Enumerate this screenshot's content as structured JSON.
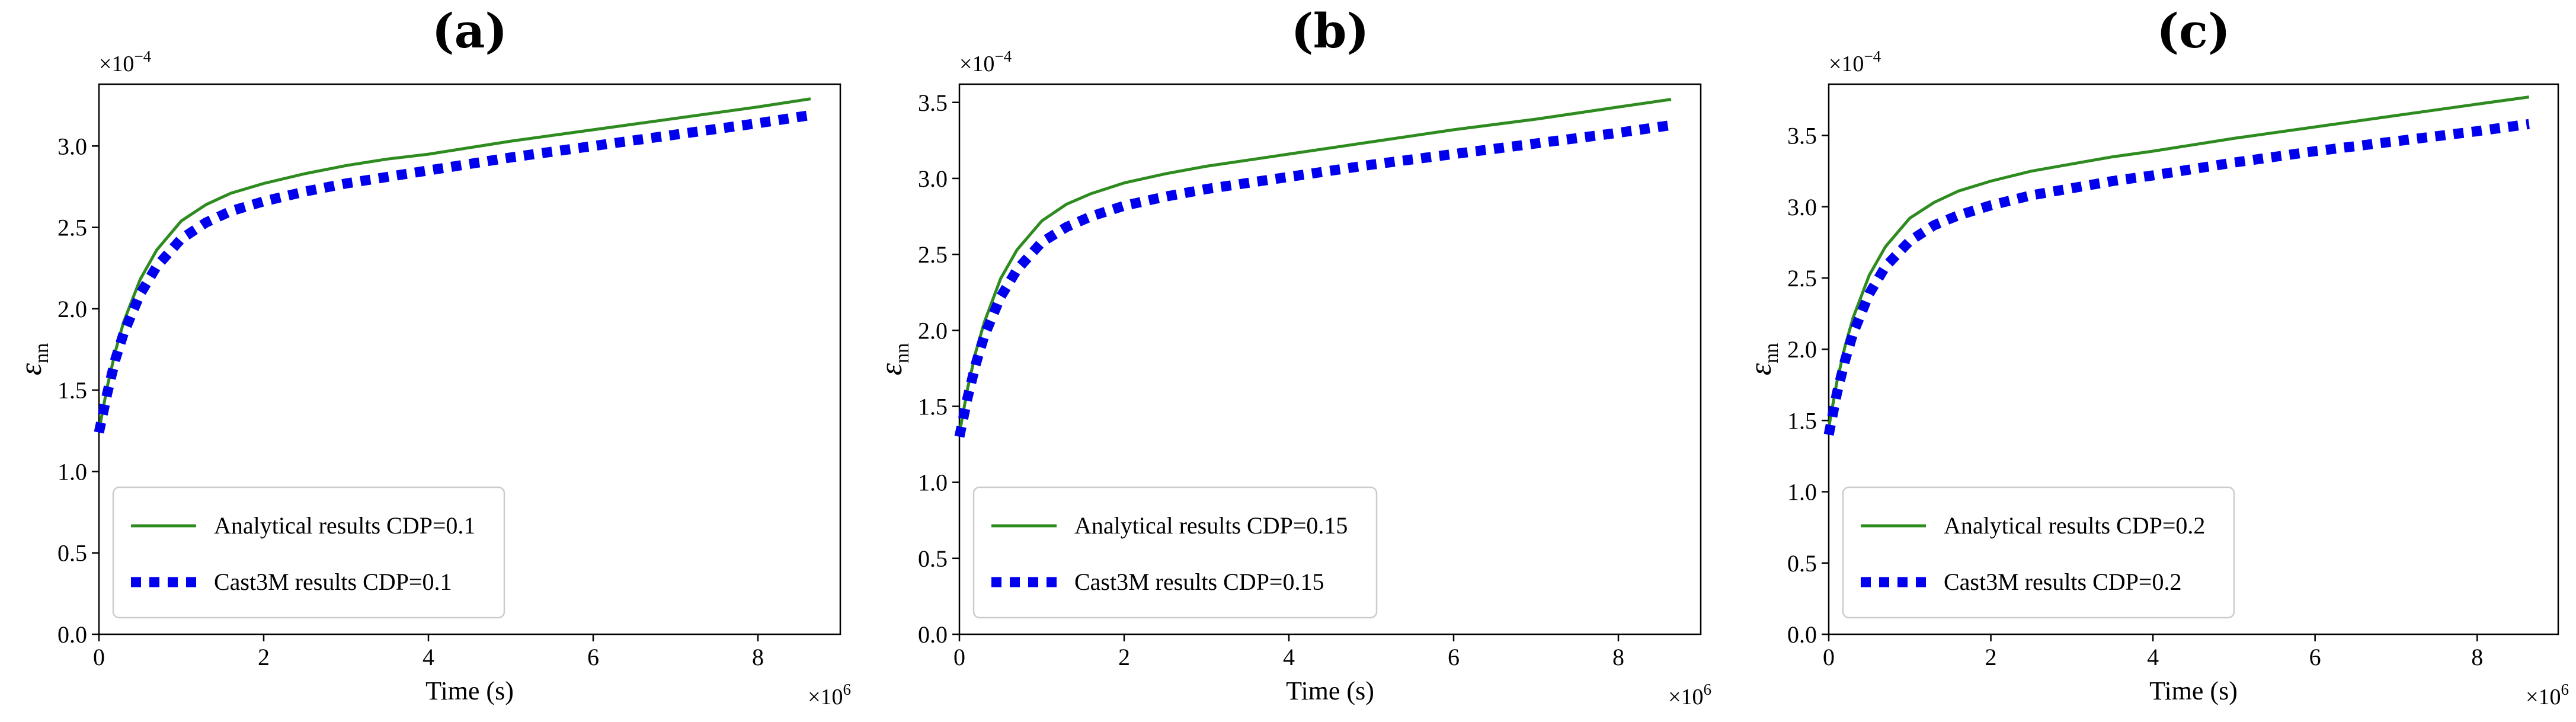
{
  "chart_data": [
    {
      "panel": "(a)",
      "type": "line",
      "xlabel": "Time (s)",
      "ylabel": "ε",
      "ylabel_sub": "nn",
      "x_multiplier": "×10",
      "x_exponent": "6",
      "y_multiplier": "×10",
      "y_exponent": "−4",
      "xlim": [
        0,
        9.0
      ],
      "ylim": [
        0,
        3.38
      ],
      "xticks": [
        0,
        2,
        4,
        6,
        8
      ],
      "yticks": [
        0.0,
        0.5,
        1.0,
        1.5,
        2.0,
        2.5,
        3.0
      ],
      "legend_position": "lower-left",
      "series": [
        {
          "name": "Analytical results CDP=0.1",
          "style": "solid",
          "color": "#2e8b1f",
          "x": [
            0.0,
            0.1,
            0.2,
            0.3,
            0.5,
            0.7,
            1.0,
            1.3,
            1.6,
            2.0,
            2.5,
            3.0,
            3.5,
            4.0,
            5.0,
            6.0,
            7.0,
            8.0,
            8.64
          ],
          "y": [
            1.25,
            1.52,
            1.74,
            1.92,
            2.18,
            2.36,
            2.54,
            2.64,
            2.71,
            2.77,
            2.83,
            2.88,
            2.92,
            2.95,
            3.03,
            3.1,
            3.17,
            3.24,
            3.29
          ]
        },
        {
          "name": "Cast3M results CDP=0.1",
          "style": "dotted",
          "color": "#0000ee",
          "x": [
            0.0,
            0.1,
            0.2,
            0.3,
            0.5,
            0.7,
            1.0,
            1.3,
            1.6,
            2.0,
            2.5,
            3.0,
            3.5,
            4.0,
            5.0,
            6.0,
            7.0,
            8.0,
            8.64
          ],
          "y": [
            1.24,
            1.48,
            1.69,
            1.85,
            2.09,
            2.26,
            2.43,
            2.53,
            2.6,
            2.66,
            2.72,
            2.77,
            2.81,
            2.85,
            2.93,
            3.0,
            3.07,
            3.14,
            3.19
          ]
        }
      ]
    },
    {
      "panel": "(b)",
      "type": "line",
      "xlabel": "Time (s)",
      "ylabel": "ε",
      "ylabel_sub": "nn",
      "x_multiplier": "×10",
      "x_exponent": "6",
      "y_multiplier": "×10",
      "y_exponent": "−4",
      "xlim": [
        0,
        9.0
      ],
      "ylim": [
        0,
        3.62
      ],
      "xticks": [
        0,
        2,
        4,
        6,
        8
      ],
      "yticks": [
        0.0,
        0.5,
        1.0,
        1.5,
        2.0,
        2.5,
        3.0,
        3.5
      ],
      "legend_position": "lower-left",
      "series": [
        {
          "name": "Analytical results CDP=0.15",
          "style": "solid",
          "color": "#2e8b1f",
          "x": [
            0.0,
            0.1,
            0.2,
            0.3,
            0.5,
            0.7,
            1.0,
            1.3,
            1.6,
            2.0,
            2.5,
            3.0,
            3.5,
            4.0,
            5.0,
            6.0,
            7.0,
            8.0,
            8.64
          ],
          "y": [
            1.32,
            1.62,
            1.86,
            2.05,
            2.34,
            2.53,
            2.72,
            2.83,
            2.9,
            2.97,
            3.03,
            3.08,
            3.12,
            3.16,
            3.24,
            3.32,
            3.39,
            3.47,
            3.52
          ]
        },
        {
          "name": "Cast3M results CDP=0.15",
          "style": "dotted",
          "color": "#0000ee",
          "x": [
            0.0,
            0.1,
            0.2,
            0.3,
            0.5,
            0.7,
            1.0,
            1.3,
            1.6,
            2.0,
            2.5,
            3.0,
            3.5,
            4.0,
            5.0,
            6.0,
            7.0,
            8.0,
            8.64
          ],
          "y": [
            1.3,
            1.56,
            1.78,
            1.96,
            2.22,
            2.4,
            2.58,
            2.68,
            2.75,
            2.82,
            2.88,
            2.93,
            2.97,
            3.01,
            3.09,
            3.16,
            3.23,
            3.3,
            3.35
          ]
        }
      ]
    },
    {
      "panel": "(c)",
      "type": "line",
      "xlabel": "Time (s)",
      "ylabel": "ε",
      "ylabel_sub": "nn",
      "x_multiplier": "×10",
      "x_exponent": "6",
      "y_multiplier": "×10",
      "y_exponent": "−4",
      "xlim": [
        0,
        9.0
      ],
      "ylim": [
        0,
        3.86
      ],
      "xticks": [
        0,
        2,
        4,
        6,
        8
      ],
      "yticks": [
        0.0,
        0.5,
        1.0,
        1.5,
        2.0,
        2.5,
        3.0,
        3.5
      ],
      "legend_position": "lower-left",
      "series": [
        {
          "name": "Analytical results CDP=0.2",
          "style": "solid",
          "color": "#2e8b1f",
          "x": [
            0.0,
            0.1,
            0.2,
            0.3,
            0.5,
            0.7,
            1.0,
            1.3,
            1.6,
            2.0,
            2.5,
            3.0,
            3.5,
            4.0,
            5.0,
            6.0,
            7.0,
            8.0,
            8.64
          ],
          "y": [
            1.45,
            1.77,
            2.02,
            2.22,
            2.52,
            2.72,
            2.92,
            3.03,
            3.11,
            3.18,
            3.25,
            3.3,
            3.35,
            3.39,
            3.48,
            3.56,
            3.64,
            3.72,
            3.77
          ]
        },
        {
          "name": "Cast3M results CDP=0.2",
          "style": "dotted",
          "color": "#0000ee",
          "x": [
            0.0,
            0.1,
            0.2,
            0.3,
            0.5,
            0.7,
            1.0,
            1.3,
            1.6,
            2.0,
            2.5,
            3.0,
            3.5,
            4.0,
            5.0,
            6.0,
            7.0,
            8.0,
            8.64
          ],
          "y": [
            1.4,
            1.69,
            1.92,
            2.11,
            2.39,
            2.58,
            2.76,
            2.87,
            2.94,
            3.01,
            3.08,
            3.13,
            3.18,
            3.22,
            3.31,
            3.39,
            3.46,
            3.53,
            3.58
          ]
        }
      ]
    }
  ]
}
